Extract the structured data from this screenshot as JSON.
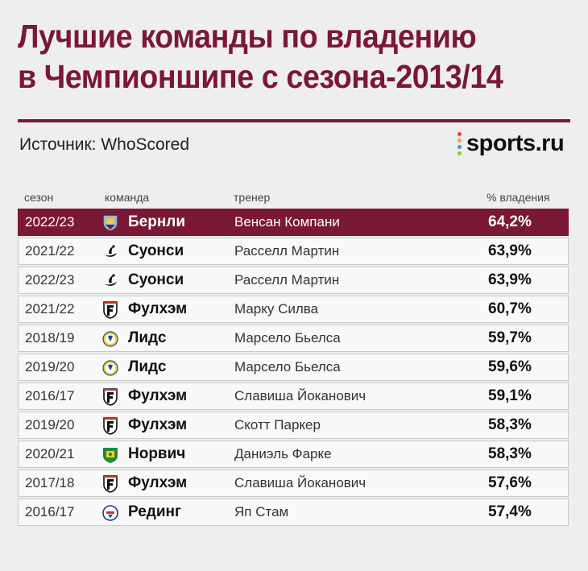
{
  "title_line1": "Лучшие команды по владению",
  "title_line2": "в Чемпионшипе с сезона-2013/14",
  "source": "Источник: WhoScored",
  "logo_text": "sports.ru",
  "colors": {
    "accent": "#7a1836",
    "background": "#eeeeee"
  },
  "chart_data": {
    "type": "table",
    "columns": [
      "сезон",
      "команда",
      "тренер",
      "% владения"
    ],
    "rows": [
      {
        "season": "2022/23",
        "team": "Бернли",
        "coach": "Венсан Компани",
        "value": "64,2%",
        "crest": "burnley-crest-icon"
      },
      {
        "season": "2021/22",
        "team": "Суонси",
        "coach": "Расселл Мартин",
        "value": "63,9%",
        "crest": "swansea-crest-icon"
      },
      {
        "season": "2022/23",
        "team": "Суонси",
        "coach": "Расселл Мартин",
        "value": "63,9%",
        "crest": "swansea-crest-icon"
      },
      {
        "season": "2021/22",
        "team": "Фулхэм",
        "coach": "Марку Силва",
        "value": "60,7%",
        "crest": "fulham-crest-icon"
      },
      {
        "season": "2018/19",
        "team": "Лидс",
        "coach": "Марсело Бьелса",
        "value": "59,7%",
        "crest": "leeds-crest-icon"
      },
      {
        "season": "2019/20",
        "team": "Лидс",
        "coach": "Марсело Бьелса",
        "value": "59,6%",
        "crest": "leeds-crest-icon"
      },
      {
        "season": "2016/17",
        "team": "Фулхэм",
        "coach": "Славиша Йоканович",
        "value": "59,1%",
        "crest": "fulham-crest-icon"
      },
      {
        "season": "2019/20",
        "team": "Фулхэм",
        "coach": "Скотт Паркер",
        "value": "58,3%",
        "crest": "fulham-crest-icon"
      },
      {
        "season": "2020/21",
        "team": "Норвич",
        "coach": "Даниэль Фарке",
        "value": "58,3%",
        "crest": "norwich-crest-icon"
      },
      {
        "season": "2017/18",
        "team": "Фулхэм",
        "coach": "Славиша Йоканович",
        "value": "57,6%",
        "crest": "fulham-crest-icon"
      },
      {
        "season": "2016/17",
        "team": "Рединг",
        "coach": "Яп Стам",
        "value": "57,4%",
        "crest": "reading-crest-icon"
      }
    ]
  }
}
